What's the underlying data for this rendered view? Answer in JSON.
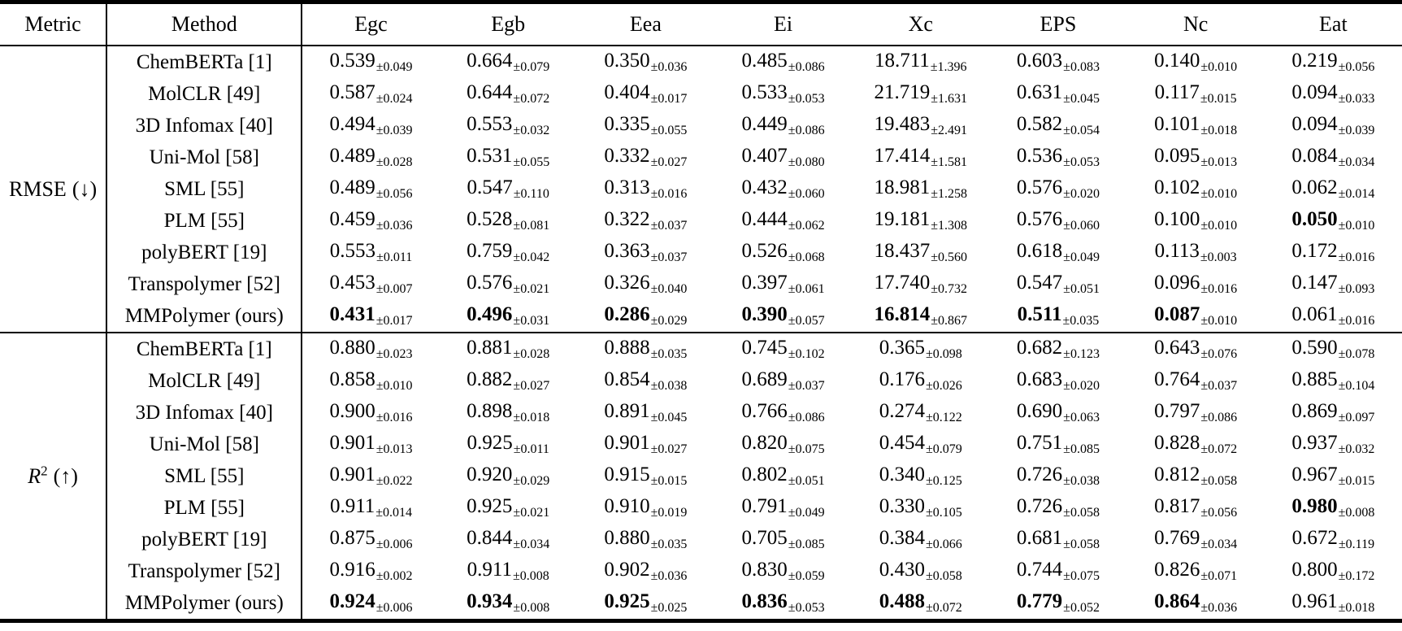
{
  "table": {
    "columns": [
      "Metric",
      "Method",
      "Egc",
      "Egb",
      "Eea",
      "Ei",
      "Xc",
      "EPS",
      "Nc",
      "Eat"
    ],
    "sections": [
      {
        "metric": {
          "name": "RMSE",
          "superscript": "",
          "direction": "(↓)",
          "italic": false
        },
        "rows": [
          {
            "method": "ChemBERTa [1]",
            "values": [
              [
                "0.539",
                "±0.049",
                0
              ],
              [
                "0.664",
                "±0.079",
                0
              ],
              [
                "0.350",
                "±0.036",
                0
              ],
              [
                "0.485",
                "±0.086",
                0
              ],
              [
                "18.711",
                "±1.396",
                0
              ],
              [
                "0.603",
                "±0.083",
                0
              ],
              [
                "0.140",
                "±0.010",
                0
              ],
              [
                "0.219",
                "±0.056",
                0
              ]
            ]
          },
          {
            "method": "MolCLR [49]",
            "values": [
              [
                "0.587",
                "±0.024",
                0
              ],
              [
                "0.644",
                "±0.072",
                0
              ],
              [
                "0.404",
                "±0.017",
                0
              ],
              [
                "0.533",
                "±0.053",
                0
              ],
              [
                "21.719",
                "±1.631",
                0
              ],
              [
                "0.631",
                "±0.045",
                0
              ],
              [
                "0.117",
                "±0.015",
                0
              ],
              [
                "0.094",
                "±0.033",
                0
              ]
            ]
          },
          {
            "method": "3D Infomax [40]",
            "values": [
              [
                "0.494",
                "±0.039",
                0
              ],
              [
                "0.553",
                "±0.032",
                0
              ],
              [
                "0.335",
                "±0.055",
                0
              ],
              [
                "0.449",
                "±0.086",
                0
              ],
              [
                "19.483",
                "±2.491",
                0
              ],
              [
                "0.582",
                "±0.054",
                0
              ],
              [
                "0.101",
                "±0.018",
                0
              ],
              [
                "0.094",
                "±0.039",
                0
              ]
            ]
          },
          {
            "method": "Uni-Mol [58]",
            "values": [
              [
                "0.489",
                "±0.028",
                0
              ],
              [
                "0.531",
                "±0.055",
                0
              ],
              [
                "0.332",
                "±0.027",
                0
              ],
              [
                "0.407",
                "±0.080",
                0
              ],
              [
                "17.414",
                "±1.581",
                0
              ],
              [
                "0.536",
                "±0.053",
                0
              ],
              [
                "0.095",
                "±0.013",
                0
              ],
              [
                "0.084",
                "±0.034",
                0
              ]
            ]
          },
          {
            "method": "SML [55]",
            "values": [
              [
                "0.489",
                "±0.056",
                0
              ],
              [
                "0.547",
                "±0.110",
                0
              ],
              [
                "0.313",
                "±0.016",
                0
              ],
              [
                "0.432",
                "±0.060",
                0
              ],
              [
                "18.981",
                "±1.258",
                0
              ],
              [
                "0.576",
                "±0.020",
                0
              ],
              [
                "0.102",
                "±0.010",
                0
              ],
              [
                "0.062",
                "±0.014",
                0
              ]
            ]
          },
          {
            "method": "PLM [55]",
            "values": [
              [
                "0.459",
                "±0.036",
                0
              ],
              [
                "0.528",
                "±0.081",
                0
              ],
              [
                "0.322",
                "±0.037",
                0
              ],
              [
                "0.444",
                "±0.062",
                0
              ],
              [
                "19.181",
                "±1.308",
                0
              ],
              [
                "0.576",
                "±0.060",
                0
              ],
              [
                "0.100",
                "±0.010",
                0
              ],
              [
                "0.050",
                "±0.010",
                1
              ]
            ]
          },
          {
            "method": "polyBERT [19]",
            "values": [
              [
                "0.553",
                "±0.011",
                0
              ],
              [
                "0.759",
                "±0.042",
                0
              ],
              [
                "0.363",
                "±0.037",
                0
              ],
              [
                "0.526",
                "±0.068",
                0
              ],
              [
                "18.437",
                "±0.560",
                0
              ],
              [
                "0.618",
                "±0.049",
                0
              ],
              [
                "0.113",
                "±0.003",
                0
              ],
              [
                "0.172",
                "±0.016",
                0
              ]
            ]
          },
          {
            "method": "Transpolymer [52]",
            "values": [
              [
                "0.453",
                "±0.007",
                0
              ],
              [
                "0.576",
                "±0.021",
                0
              ],
              [
                "0.326",
                "±0.040",
                0
              ],
              [
                "0.397",
                "±0.061",
                0
              ],
              [
                "17.740",
                "±0.732",
                0
              ],
              [
                "0.547",
                "±0.051",
                0
              ],
              [
                "0.096",
                "±0.016",
                0
              ],
              [
                "0.147",
                "±0.093",
                0
              ]
            ]
          },
          {
            "method": "MMPolymer (ours)",
            "values": [
              [
                "0.431",
                "±0.017",
                1
              ],
              [
                "0.496",
                "±0.031",
                1
              ],
              [
                "0.286",
                "±0.029",
                1
              ],
              [
                "0.390",
                "±0.057",
                1
              ],
              [
                "16.814",
                "±0.867",
                1
              ],
              [
                "0.511",
                "±0.035",
                1
              ],
              [
                "0.087",
                "±0.010",
                1
              ],
              [
                "0.061",
                "±0.016",
                0
              ]
            ]
          }
        ]
      },
      {
        "metric": {
          "name": "R",
          "superscript": "2",
          "direction": "(↑)",
          "italic": true
        },
        "rows": [
          {
            "method": "ChemBERTa [1]",
            "values": [
              [
                "0.880",
                "±0.023",
                0
              ],
              [
                "0.881",
                "±0.028",
                0
              ],
              [
                "0.888",
                "±0.035",
                0
              ],
              [
                "0.745",
                "±0.102",
                0
              ],
              [
                "0.365",
                "±0.098",
                0
              ],
              [
                "0.682",
                "±0.123",
                0
              ],
              [
                "0.643",
                "±0.076",
                0
              ],
              [
                "0.590",
                "±0.078",
                0
              ]
            ]
          },
          {
            "method": "MolCLR [49]",
            "values": [
              [
                "0.858",
                "±0.010",
                0
              ],
              [
                "0.882",
                "±0.027",
                0
              ],
              [
                "0.854",
                "±0.038",
                0
              ],
              [
                "0.689",
                "±0.037",
                0
              ],
              [
                "0.176",
                "±0.026",
                0
              ],
              [
                "0.683",
                "±0.020",
                0
              ],
              [
                "0.764",
                "±0.037",
                0
              ],
              [
                "0.885",
                "±0.104",
                0
              ]
            ]
          },
          {
            "method": "3D Infomax [40]",
            "values": [
              [
                "0.900",
                "±0.016",
                0
              ],
              [
                "0.898",
                "±0.018",
                0
              ],
              [
                "0.891",
                "±0.045",
                0
              ],
              [
                "0.766",
                "±0.086",
                0
              ],
              [
                "0.274",
                "±0.122",
                0
              ],
              [
                "0.690",
                "±0.063",
                0
              ],
              [
                "0.797",
                "±0.086",
                0
              ],
              [
                "0.869",
                "±0.097",
                0
              ]
            ]
          },
          {
            "method": "Uni-Mol [58]",
            "values": [
              [
                "0.901",
                "±0.013",
                0
              ],
              [
                "0.925",
                "±0.011",
                0
              ],
              [
                "0.901",
                "±0.027",
                0
              ],
              [
                "0.820",
                "±0.075",
                0
              ],
              [
                "0.454",
                "±0.079",
                0
              ],
              [
                "0.751",
                "±0.085",
                0
              ],
              [
                "0.828",
                "±0.072",
                0
              ],
              [
                "0.937",
                "±0.032",
                0
              ]
            ]
          },
          {
            "method": "SML [55]",
            "values": [
              [
                "0.901",
                "±0.022",
                0
              ],
              [
                "0.920",
                "±0.029",
                0
              ],
              [
                "0.915",
                "±0.015",
                0
              ],
              [
                "0.802",
                "±0.051",
                0
              ],
              [
                "0.340",
                "±0.125",
                0
              ],
              [
                "0.726",
                "±0.038",
                0
              ],
              [
                "0.812",
                "±0.058",
                0
              ],
              [
                "0.967",
                "±0.015",
                0
              ]
            ]
          },
          {
            "method": "PLM [55]",
            "values": [
              [
                "0.911",
                "±0.014",
                0
              ],
              [
                "0.925",
                "±0.021",
                0
              ],
              [
                "0.910",
                "±0.019",
                0
              ],
              [
                "0.791",
                "±0.049",
                0
              ],
              [
                "0.330",
                "±0.105",
                0
              ],
              [
                "0.726",
                "±0.058",
                0
              ],
              [
                "0.817",
                "±0.056",
                0
              ],
              [
                "0.980",
                "±0.008",
                1
              ]
            ]
          },
          {
            "method": "polyBERT [19]",
            "values": [
              [
                "0.875",
                "±0.006",
                0
              ],
              [
                "0.844",
                "±0.034",
                0
              ],
              [
                "0.880",
                "±0.035",
                0
              ],
              [
                "0.705",
                "±0.085",
                0
              ],
              [
                "0.384",
                "±0.066",
                0
              ],
              [
                "0.681",
                "±0.058",
                0
              ],
              [
                "0.769",
                "±0.034",
                0
              ],
              [
                "0.672",
                "±0.119",
                0
              ]
            ]
          },
          {
            "method": "Transpolymer [52]",
            "values": [
              [
                "0.916",
                "±0.002",
                0
              ],
              [
                "0.911",
                "±0.008",
                0
              ],
              [
                "0.902",
                "±0.036",
                0
              ],
              [
                "0.830",
                "±0.059",
                0
              ],
              [
                "0.430",
                "±0.058",
                0
              ],
              [
                "0.744",
                "±0.075",
                0
              ],
              [
                "0.826",
                "±0.071",
                0
              ],
              [
                "0.800",
                "±0.172",
                0
              ]
            ]
          },
          {
            "method": "MMPolymer (ours)",
            "values": [
              [
                "0.924",
                "±0.006",
                1
              ],
              [
                "0.934",
                "±0.008",
                1
              ],
              [
                "0.925",
                "±0.025",
                1
              ],
              [
                "0.836",
                "±0.053",
                1
              ],
              [
                "0.488",
                "±0.072",
                1
              ],
              [
                "0.779",
                "±0.052",
                1
              ],
              [
                "0.864",
                "±0.036",
                1
              ],
              [
                "0.961",
                "±0.018",
                0
              ]
            ]
          }
        ]
      }
    ]
  }
}
